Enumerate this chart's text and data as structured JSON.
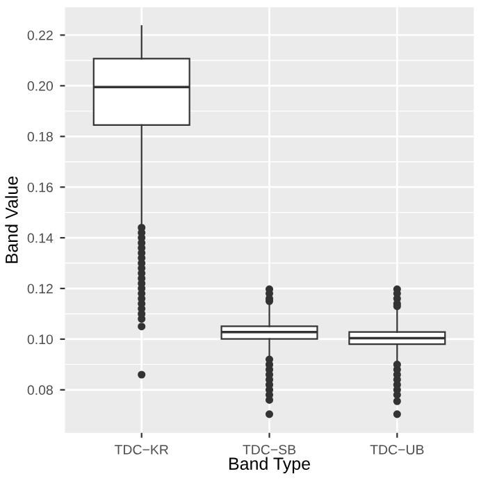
{
  "chart_data": {
    "type": "box",
    "xlabel": "Band Type",
    "ylabel": "Band Value",
    "categories": [
      "TDC−KR",
      "TDC−SB",
      "TDC−UB"
    ],
    "boxes": [
      {
        "low": 0.145,
        "q1": 0.1845,
        "median": 0.1995,
        "q3": 0.2107,
        "high": 0.2236,
        "outliers": [
          0.144,
          0.142,
          0.14,
          0.138,
          0.136,
          0.134,
          0.132,
          0.13,
          0.128,
          0.126,
          0.124,
          0.122,
          0.12,
          0.118,
          0.116,
          0.114,
          0.112,
          0.11,
          0.108,
          0.105,
          0.086
        ]
      },
      {
        "low": 0.0929,
        "q1": 0.1001,
        "median": 0.1028,
        "q3": 0.1051,
        "high": 0.1138,
        "outliers": [
          0.1197,
          0.118,
          0.116,
          0.115,
          0.092,
          0.09,
          0.088,
          0.086,
          0.084,
          0.082,
          0.08,
          0.078,
          0.076,
          0.0704
        ]
      },
      {
        "low": 0.0912,
        "q1": 0.098,
        "median": 0.1004,
        "q3": 0.1028,
        "high": 0.1117,
        "outliers": [
          0.1197,
          0.118,
          0.116,
          0.114,
          0.113,
          0.09,
          0.088,
          0.086,
          0.084,
          0.082,
          0.08,
          0.078,
          0.0755,
          0.0704
        ]
      }
    ],
    "ylim": [
      0.063,
      0.231
    ],
    "yticks": [
      0.08,
      {
        "value": 0.1,
        "label": "0.10"
      },
      0.12,
      0.14,
      0.16,
      0.18,
      {
        "value": 0.2,
        "label": "0.20"
      },
      0.22
    ],
    "grid": true
  }
}
